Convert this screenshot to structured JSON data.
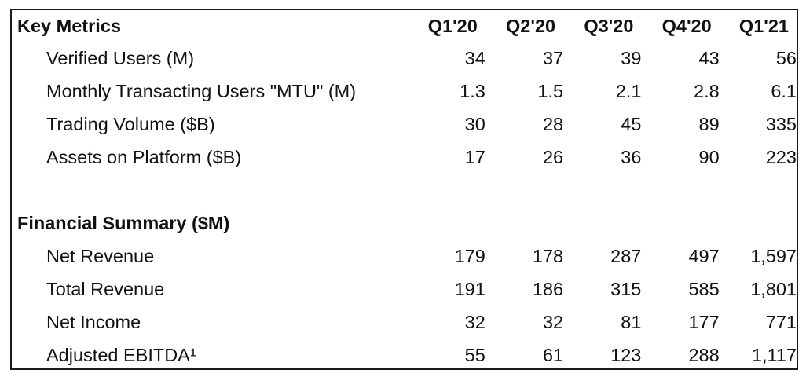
{
  "header": {
    "section_title": "Key Metrics",
    "columns": [
      "Q1'20",
      "Q2'20",
      "Q3'20",
      "Q4'20",
      "Q1'21"
    ]
  },
  "key_metrics": [
    {
      "label": "Verified Users (M)",
      "values": [
        "34",
        "37",
        "39",
        "43",
        "56"
      ]
    },
    {
      "label": "Monthly Transacting Users \"MTU\" (M)",
      "values": [
        "1.3",
        "1.5",
        "2.1",
        "2.8",
        "6.1"
      ]
    },
    {
      "label": "Trading Volume ($B)",
      "values": [
        "30",
        "28",
        "45",
        "89",
        "335"
      ]
    },
    {
      "label": "Assets on Platform ($B)",
      "values": [
        "17",
        "26",
        "36",
        "90",
        "223"
      ]
    }
  ],
  "financial": {
    "section_title": "Financial Summary ($M)",
    "rows": [
      {
        "label": "Net Revenue",
        "values": [
          "179",
          "178",
          "287",
          "497",
          "1,597"
        ]
      },
      {
        "label": "Total Revenue",
        "values": [
          "191",
          "186",
          "315",
          "585",
          "1,801"
        ]
      },
      {
        "label": "Net Income",
        "values": [
          "32",
          "32",
          "81",
          "177",
          "771"
        ]
      },
      {
        "label": "Adjusted EBITDA¹",
        "values": [
          "55",
          "61",
          "123",
          "288",
          "1,117"
        ]
      }
    ]
  }
}
